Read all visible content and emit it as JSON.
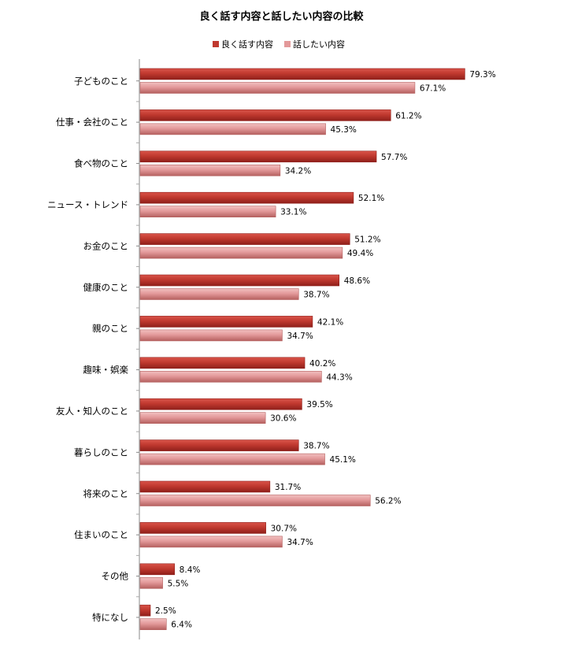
{
  "chart_data": {
    "type": "bar",
    "orientation": "horizontal",
    "title": "良く話す内容と話したい内容の比較",
    "categories": [
      "子どものこと",
      "仕事・会社のこと",
      "食べ物のこと",
      "ニュース・トレンド",
      "お金のこと",
      "健康のこと",
      "親のこと",
      "趣味・娯楽",
      "友人・知人のこと",
      "暮らしのこと",
      "将来のこと",
      "住まいのこと",
      "その他",
      "特になし"
    ],
    "series": [
      {
        "name": "良く話す内容",
        "color": "#c0392f",
        "values": [
          79.3,
          61.2,
          57.7,
          52.1,
          51.2,
          48.6,
          42.1,
          40.2,
          39.5,
          38.7,
          31.7,
          30.7,
          8.4,
          2.5
        ]
      },
      {
        "name": "話したい内容",
        "color": "#e3999a",
        "values": [
          67.1,
          45.3,
          34.2,
          33.1,
          49.4,
          38.7,
          34.7,
          44.3,
          30.6,
          45.1,
          56.2,
          34.7,
          5.5,
          6.4
        ]
      }
    ],
    "value_suffix": "%",
    "xlim": [
      0,
      80
    ],
    "legend_position": "top",
    "grid": false
  }
}
